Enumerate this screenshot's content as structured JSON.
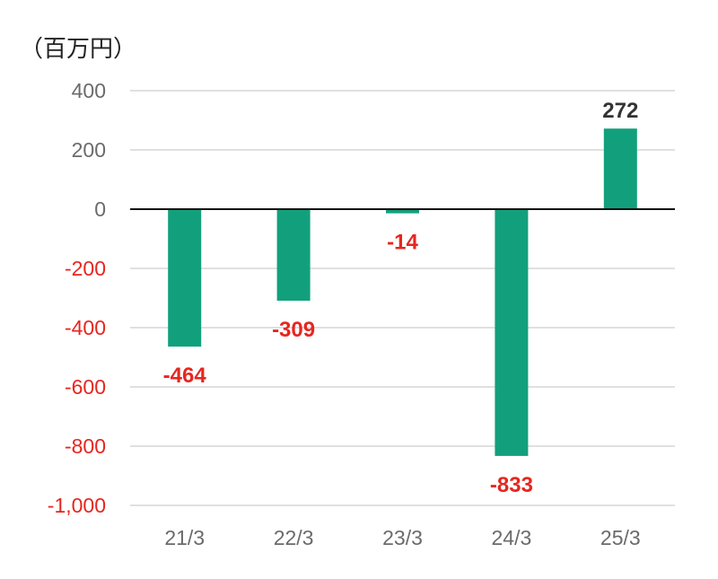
{
  "chart_data": {
    "type": "bar",
    "unit_label": "（百万円）",
    "categories": [
      "21/3",
      "22/3",
      "23/3",
      "24/3",
      "25/3"
    ],
    "values": [
      -464,
      -309,
      -14,
      -833,
      272
    ],
    "value_labels": [
      "-464",
      "-309",
      "-14",
      "-833",
      "272"
    ],
    "y_ticks": [
      400,
      200,
      0,
      -200,
      -400,
      -600,
      -800,
      -1000
    ],
    "y_tick_labels": [
      "400",
      "200",
      "0",
      "-200",
      "-400",
      "-600",
      "-800",
      "-1,000"
    ],
    "ylim": [
      -1000,
      400
    ],
    "grid": true,
    "legend": "none",
    "colors": {
      "bar": "#12a07c",
      "negative_text": "#e6261f",
      "positive_text": "#333333",
      "axis_text": "#6b6b6b",
      "gridline": "#d6d6d6",
      "zero_line": "#111111"
    }
  }
}
